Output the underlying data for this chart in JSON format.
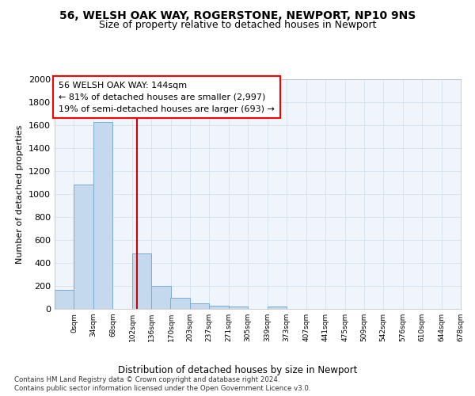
{
  "title1": "56, WELSH OAK WAY, ROGERSTONE, NEWPORT, NP10 9NS",
  "title2": "Size of property relative to detached houses in Newport",
  "xlabel": "Distribution of detached houses by size in Newport",
  "ylabel": "Number of detached properties",
  "footer1": "Contains HM Land Registry data © Crown copyright and database right 2024.",
  "footer2": "Contains public sector information licensed under the Open Government Licence v3.0.",
  "annotation_line1": "56 WELSH OAK WAY: 144sqm",
  "annotation_line2": "← 81% of detached houses are smaller (2,997)",
  "annotation_line3": "19% of semi-detached houses are larger (693) →",
  "bar_color": "#c5d9ee",
  "bar_edge_color": "#7aadd4",
  "redline_color": "#cc0000",
  "redline_x": 144,
  "bin_left_edges": [
    0,
    34,
    68,
    102,
    136,
    170,
    203,
    237,
    271,
    305,
    339,
    373,
    407,
    441,
    475,
    509,
    542,
    576,
    610,
    644,
    678
  ],
  "bin_width": 34,
  "values": [
    165,
    1085,
    1625,
    2,
    485,
    200,
    100,
    45,
    25,
    20,
    0,
    18,
    0,
    0,
    0,
    0,
    0,
    0,
    0,
    0,
    0
  ],
  "xtick_labels": [
    "0sqm",
    "34sqm",
    "68sqm",
    "102sqm",
    "136sqm",
    "170sqm",
    "203sqm",
    "237sqm",
    "271sqm",
    "305sqm",
    "339sqm",
    "373sqm",
    "407sqm",
    "441sqm",
    "475sqm",
    "509sqm",
    "542sqm",
    "576sqm",
    "610sqm",
    "644sqm",
    "678sqm"
  ],
  "ylim": [
    0,
    2000
  ],
  "yticks": [
    0,
    200,
    400,
    600,
    800,
    1000,
    1200,
    1400,
    1600,
    1800,
    2000
  ],
  "xlim_right": 712,
  "background_color": "#ffffff",
  "plot_bg_color": "#f0f5fb",
  "grid_color": "#d8e4f0"
}
